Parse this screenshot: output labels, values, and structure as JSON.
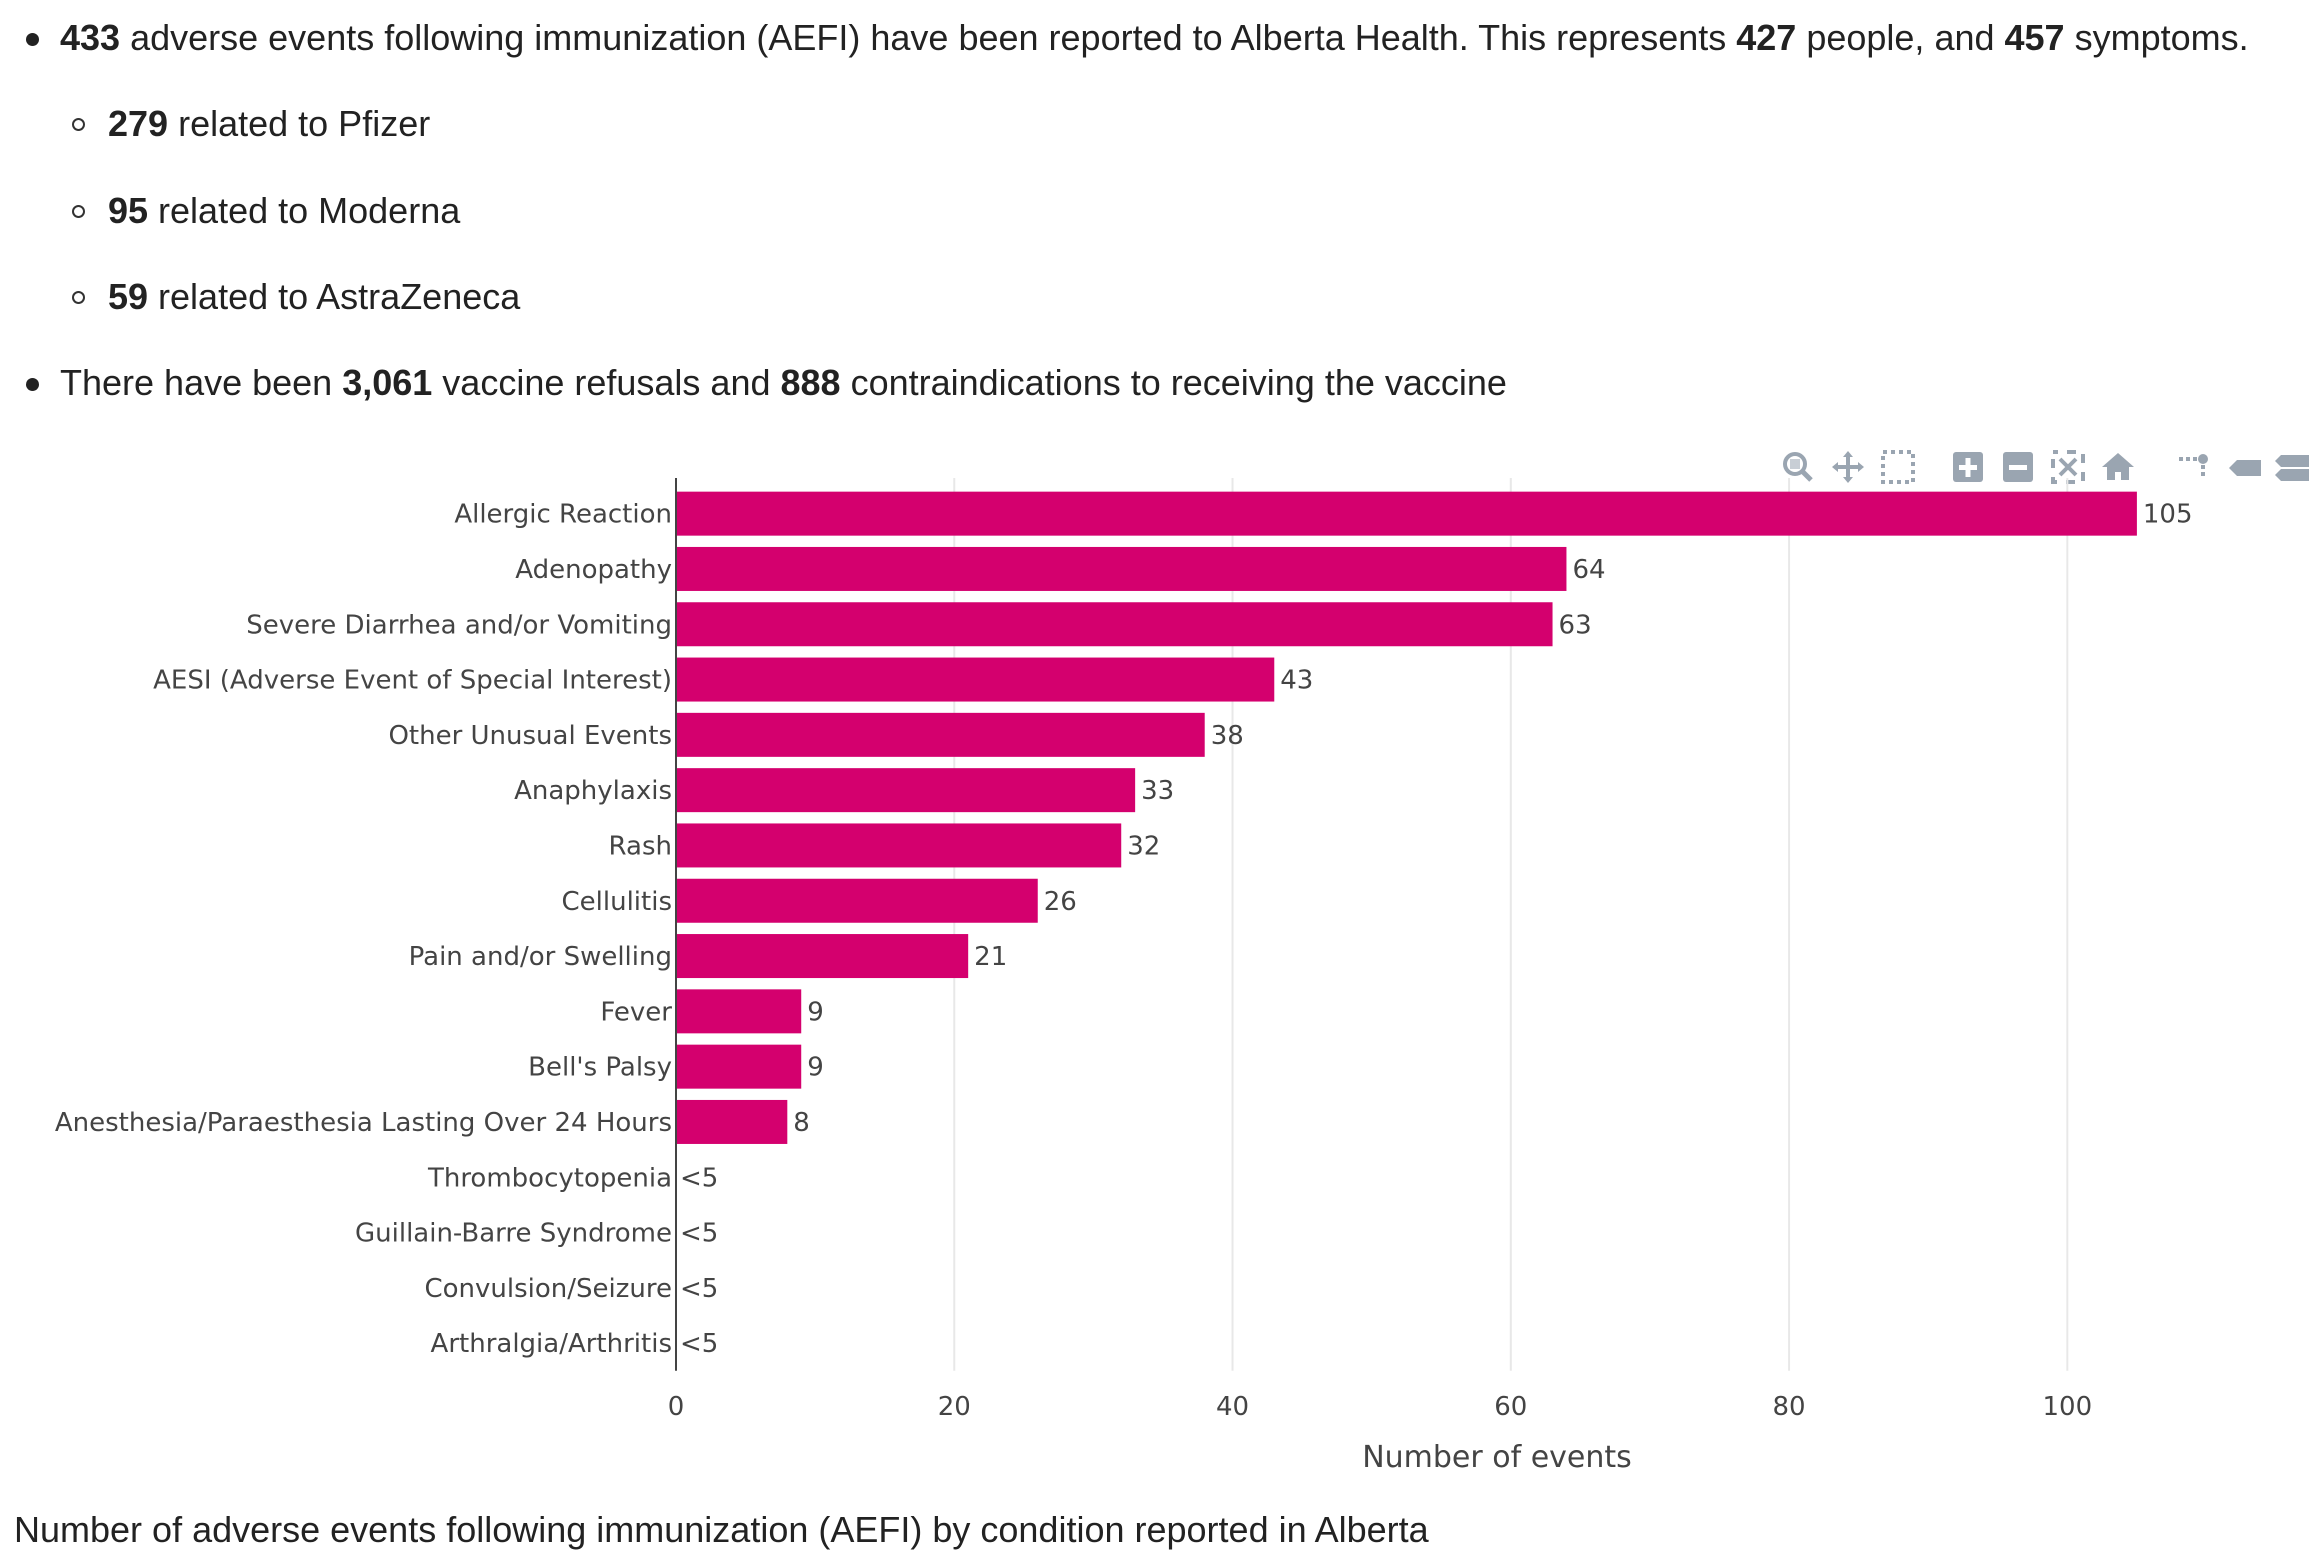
{
  "bullets": {
    "b1": {
      "n1": "433",
      "t1": " adverse events following immunization (AEFI) have been reported to Alberta Health. This represents ",
      "n2": "427",
      "t2": " people, and ",
      "n3": "457",
      "t3": " symptoms."
    },
    "sub": [
      {
        "num": "279",
        "text": " related to Pfizer"
      },
      {
        "num": "95",
        "text": " related to Moderna"
      },
      {
        "num": "59",
        "text": " related to AstraZeneca"
      }
    ],
    "b2": {
      "t0": "There have been ",
      "n1": "3,061",
      "t1": " vaccine refusals and ",
      "n2": "888",
      "t2": " contraindications to receiving the vaccine"
    }
  },
  "modebar": {
    "icons": [
      "zoom-icon",
      "pan-icon",
      "box-select-icon",
      "zoom-in-icon",
      "zoom-out-icon",
      "autoscale-icon",
      "reset-axes-icon",
      "spike-lines-icon",
      "hover-closest-icon",
      "hover-compare-icon"
    ]
  },
  "chart_data": {
    "type": "bar",
    "orientation": "horizontal",
    "categories": [
      "Allergic Reaction",
      "Adenopathy",
      "Severe Diarrhea and/or Vomiting",
      "AESI (Adverse Event of Special Interest)",
      "Other Unusual Events",
      "Anaphylaxis",
      "Rash",
      "Cellulitis",
      "Pain and/or Swelling",
      "Fever",
      "Bell's Palsy",
      "Anesthesia/Paraesthesia Lasting Over 24 Hours",
      "Thrombocytopenia",
      "Guillain-Barre Syndrome",
      "Convulsion/Seizure",
      "Arthralgia/Arthritis"
    ],
    "values": [
      105,
      64,
      63,
      43,
      38,
      33,
      32,
      26,
      21,
      9,
      9,
      8,
      0,
      0,
      0,
      0
    ],
    "data_labels": [
      "105",
      "64",
      "63",
      "43",
      "38",
      "33",
      "32",
      "26",
      "21",
      "9",
      "9",
      "8",
      "<5",
      "<5",
      "<5",
      "<5"
    ],
    "xlabel": "Number of events",
    "ylabel": "",
    "xlim": [
      0,
      150
    ],
    "xticks": [
      0,
      20,
      40,
      60,
      80,
      100,
      120,
      140
    ],
    "grid": "vertical",
    "bar_color": "#d4006e"
  },
  "caption": "Number of adverse events following immunization (AEFI) by condition reported in Alberta"
}
